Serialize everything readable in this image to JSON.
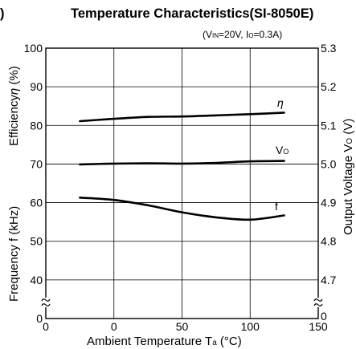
{
  "title_prefix": ")",
  "chart_data": {
    "type": "line",
    "title": "Temperature Characteristics(SI-8050E)",
    "conditions": {
      "vin_main": "V",
      "vin_sub": "IN",
      "vin_value": "=20V, ",
      "io_main": "I",
      "io_sub": "O",
      "io_value": "=0.3A)",
      "open_paren": "("
    },
    "xlabel": {
      "text": "Ambient Temperature T",
      "sub": "a",
      "unit": " (°C)"
    },
    "ylabel_left_top": {
      "text": "Efficiency",
      "symbol": "η",
      "unit": " (%)"
    },
    "ylabel_left_bottom": "Frequency f (kHz)",
    "ylabel_right": {
      "text": "Output Voltage V",
      "sub": "O",
      "unit": " (V)"
    },
    "x_ticks": [
      "0",
      "0",
      "50",
      "100",
      "150"
    ],
    "x_tick_values": [
      -50,
      0,
      50,
      100,
      150
    ],
    "xlim": [
      -50,
      150
    ],
    "y_left_ticks": [
      "100",
      "90",
      "80",
      "70",
      "60",
      "50",
      "40",
      "0"
    ],
    "y_left_tick_values": [
      100,
      90,
      80,
      70,
      60,
      50,
      40,
      30
    ],
    "y_right_ticks": [
      "5.3",
      "5.2",
      "5.1",
      "5.0",
      "4.9",
      "4.8",
      "4.7",
      "0"
    ],
    "ylim_left": [
      30,
      100
    ],
    "axis_break": true,
    "grid": true,
    "series": [
      {
        "name": "η",
        "label": "η",
        "axis": "left",
        "x": [
          -25,
          0,
          25,
          50,
          75,
          100,
          125
        ],
        "values": [
          81.1,
          81.7,
          82.2,
          82.3,
          82.6,
          82.9,
          83.3
        ]
      },
      {
        "name": "VO",
        "label_main": "V",
        "label_sub": "O",
        "axis": "right",
        "x": [
          -25,
          0,
          25,
          50,
          75,
          100,
          125
        ],
        "values": [
          4.999,
          5.001,
          5.002,
          5.001,
          5.003,
          5.007,
          5.008
        ]
      },
      {
        "name": "f",
        "label": "f",
        "axis": "left",
        "x": [
          -25,
          0,
          25,
          50,
          75,
          100,
          125
        ],
        "values": [
          61.3,
          60.7,
          59.3,
          57.5,
          56.2,
          55.6,
          56.7
        ]
      }
    ]
  }
}
